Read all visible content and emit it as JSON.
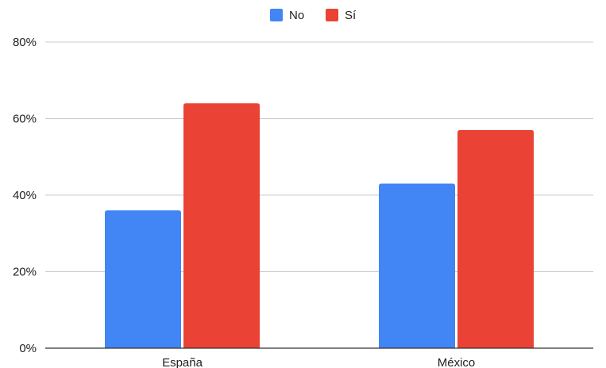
{
  "chart_data": {
    "type": "bar",
    "categories": [
      "España",
      "México"
    ],
    "series": [
      {
        "name": "No",
        "values": [
          36,
          43
        ],
        "color": "#4285f4"
      },
      {
        "name": "Sí",
        "values": [
          64,
          57
        ],
        "color": "#ea4335"
      }
    ],
    "yticks": [
      "0%",
      "20%",
      "40%",
      "60%",
      "80%"
    ],
    "ylim": [
      0,
      80
    ],
    "grid": true,
    "legend_position": "top-center",
    "title": "",
    "xlabel": "",
    "ylabel": ""
  }
}
